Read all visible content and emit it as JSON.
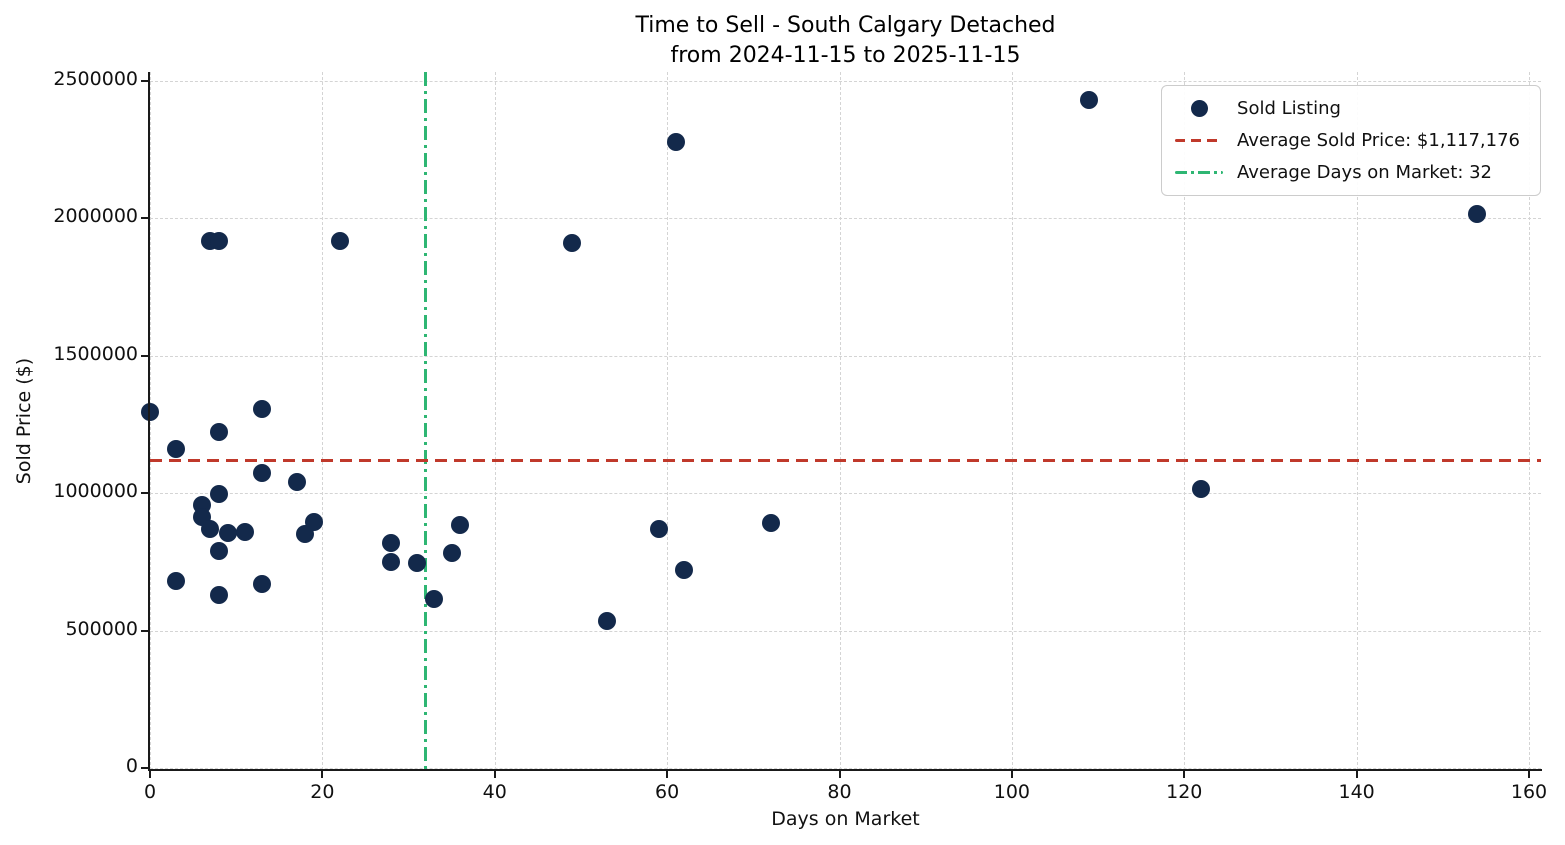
{
  "chart_data": {
    "type": "scatter",
    "title": "Time to Sell - South Calgary Detached",
    "subtitle": "from 2024-11-15 to 2025-11-15",
    "xlabel": "Days on Market",
    "ylabel": "Sold Price ($)",
    "xlim": [
      0,
      160
    ],
    "ylim": [
      0,
      2500000
    ],
    "xticks": [
      0,
      20,
      40,
      60,
      80,
      100,
      120,
      140,
      160
    ],
    "yticks": [
      0,
      500000,
      1000000,
      1500000,
      2000000,
      2500000
    ],
    "grid": true,
    "legend_position": "upper right",
    "series": [
      {
        "name": "Sold Listing",
        "type": "scatter",
        "color": "#13294b",
        "points": [
          [
            0,
            1295000
          ],
          [
            3,
            1160000
          ],
          [
            3,
            680000
          ],
          [
            6,
            958000
          ],
          [
            6,
            913000
          ],
          [
            7,
            1917000
          ],
          [
            7,
            870000
          ],
          [
            8,
            1917000
          ],
          [
            8,
            1221000
          ],
          [
            8,
            998000
          ],
          [
            8,
            788000
          ],
          [
            8,
            630000
          ],
          [
            9,
            855000
          ],
          [
            11,
            858000
          ],
          [
            13,
            1305000
          ],
          [
            13,
            1072000
          ],
          [
            13,
            670000
          ],
          [
            17,
            1039000
          ],
          [
            18,
            850000
          ],
          [
            19,
            893000
          ],
          [
            22,
            1917000
          ],
          [
            28,
            820000
          ],
          [
            28,
            749000
          ],
          [
            31,
            745000
          ],
          [
            33,
            616000
          ],
          [
            35,
            782000
          ],
          [
            36,
            883000
          ],
          [
            49,
            1910000
          ],
          [
            53,
            533000
          ],
          [
            59,
            870000
          ],
          [
            61,
            2277000
          ],
          [
            62,
            719000
          ],
          [
            72,
            892000
          ],
          [
            109,
            2430000
          ],
          [
            122,
            1016000
          ],
          [
            154,
            2015000
          ]
        ]
      }
    ],
    "avg_price_line": {
      "value": 1117176,
      "color": "#c0392b",
      "style": "dashed"
    },
    "avg_days_line": {
      "value": 32,
      "color": "#2eb673",
      "style": "dashdot"
    },
    "legend": [
      {
        "label": "Sold Listing",
        "marker": "dot"
      },
      {
        "label": "Average Sold Price: $1,117,176",
        "marker": "dashed-line"
      },
      {
        "label": "Average Days on Market: 32",
        "marker": "dashdot-line"
      }
    ]
  }
}
